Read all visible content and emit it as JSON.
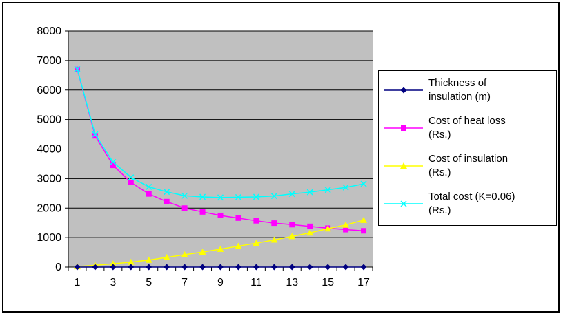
{
  "chart_data": {
    "type": "line",
    "title": "",
    "xlabel": "",
    "ylabel": "",
    "x": [
      1,
      2,
      3,
      4,
      5,
      6,
      7,
      8,
      9,
      10,
      11,
      12,
      13,
      14,
      15,
      16,
      17
    ],
    "x_tick_labels": [
      "1",
      "3",
      "5",
      "7",
      "9",
      "11",
      "13",
      "15",
      "17"
    ],
    "y_tick_labels": [
      "0",
      "1000",
      "2000",
      "3000",
      "4000",
      "5000",
      "6000",
      "7000",
      "8000"
    ],
    "ylim": [
      0,
      8000
    ],
    "grid": "horizontal",
    "plot_background": "#c0c0c0",
    "legend_position": "right",
    "series": [
      {
        "name": "Thickness of insulation (m)",
        "legend_lines": [
          "Thickness of",
          "insulation (m)"
        ],
        "color": "#000080",
        "marker": "diamond",
        "values": [
          0.01,
          0.02,
          0.03,
          0.04,
          0.05,
          0.06,
          0.07,
          0.08,
          0.09,
          0.1,
          0.11,
          0.12,
          0.13,
          0.14,
          0.15,
          0.16,
          0.17
        ]
      },
      {
        "name": "Cost of heat loss (Rs.)",
        "legend_lines": [
          "Cost of heat loss",
          "(Rs.)"
        ],
        "color": "#ff00ff",
        "marker": "square",
        "values": [
          6700,
          4450,
          3450,
          2870,
          2480,
          2220,
          2000,
          1870,
          1750,
          1660,
          1570,
          1490,
          1440,
          1380,
          1320,
          1270,
          1230
        ]
      },
      {
        "name": "Cost of insulation (Rs.)",
        "legend_lines": [
          "Cost of insulation",
          "(Rs.)"
        ],
        "color": "#ffff00",
        "marker": "triangle",
        "values": [
          20,
          60,
          110,
          170,
          240,
          330,
          420,
          510,
          610,
          710,
          810,
          920,
          1040,
          1160,
          1300,
          1430,
          1590
        ]
      },
      {
        "name": "Total cost (K=0.06) (Rs.)",
        "legend_lines": [
          "Total cost (K=0.06)",
          "(Rs.)"
        ],
        "color": "#00ffff",
        "marker": "x",
        "values": [
          6710,
          4500,
          3560,
          3040,
          2720,
          2550,
          2420,
          2380,
          2360,
          2370,
          2380,
          2410,
          2480,
          2540,
          2620,
          2700,
          2820
        ]
      }
    ]
  }
}
